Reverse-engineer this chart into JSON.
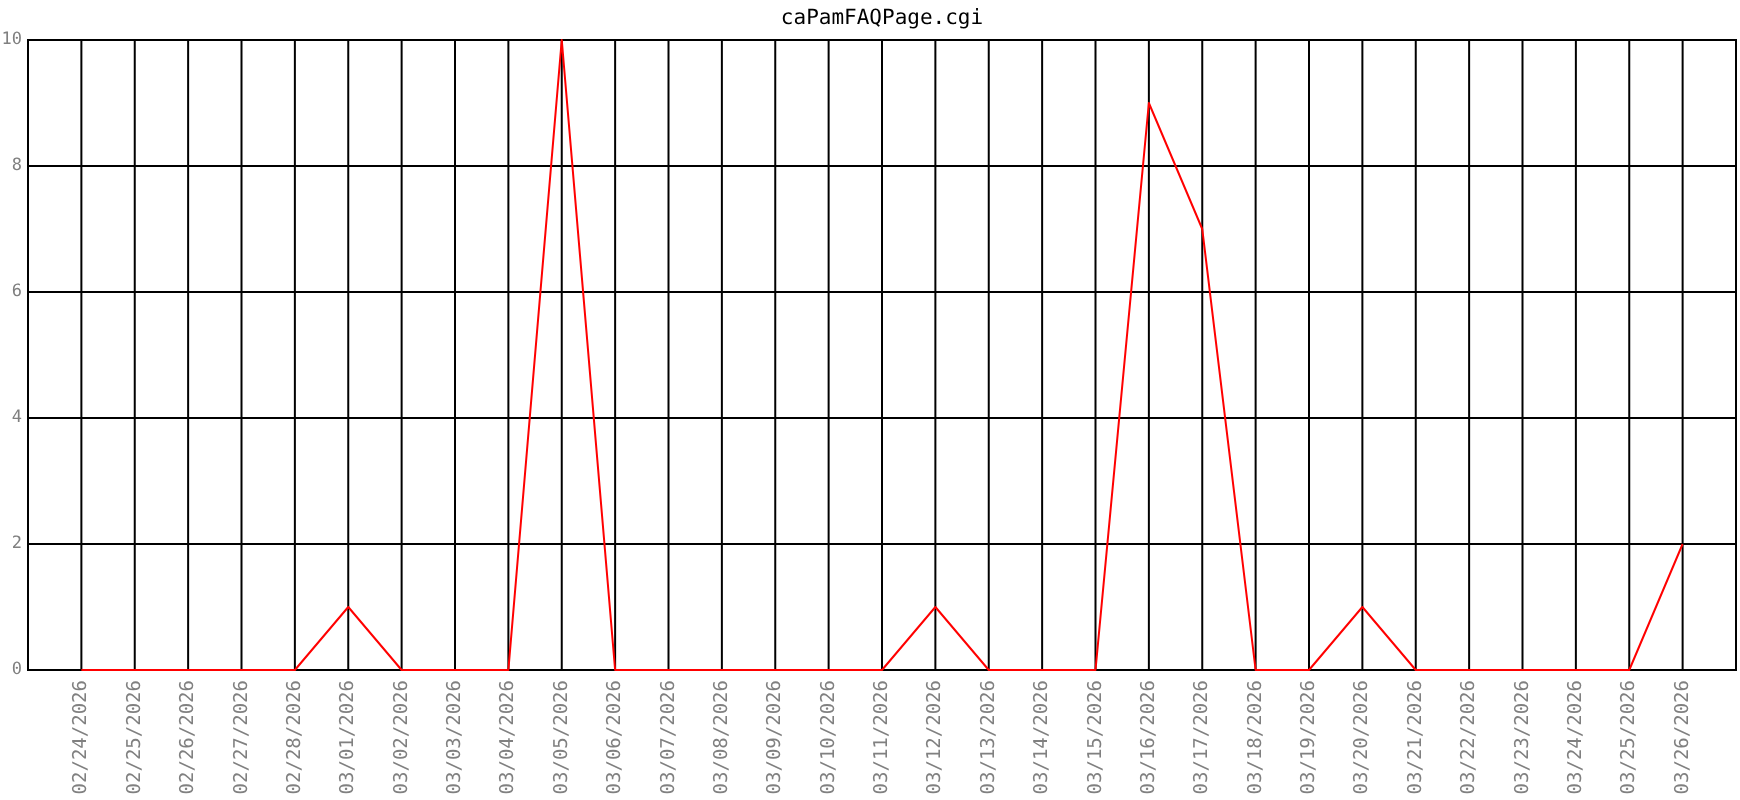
{
  "chart_data": {
    "type": "line",
    "title": "caPamFAQPage.cgi",
    "categories": [
      "02/24/2026",
      "02/25/2026",
      "02/26/2026",
      "02/27/2026",
      "02/28/2026",
      "03/01/2026",
      "03/02/2026",
      "03/03/2026",
      "03/04/2026",
      "03/05/2026",
      "03/06/2026",
      "03/07/2026",
      "03/08/2026",
      "03/09/2026",
      "03/10/2026",
      "03/11/2026",
      "03/12/2026",
      "03/13/2026",
      "03/14/2026",
      "03/15/2026",
      "03/16/2026",
      "03/17/2026",
      "03/18/2026",
      "03/19/2026",
      "03/20/2026",
      "03/21/2026",
      "03/22/2026",
      "03/23/2026",
      "03/24/2026",
      "03/25/2026",
      "03/26/2026"
    ],
    "series": [
      {
        "color": "#ff0000",
        "values": [
          0,
          0,
          0,
          0,
          0,
          1,
          0,
          0,
          0,
          10,
          0,
          0,
          0,
          0,
          0,
          0,
          1,
          0,
          0,
          0,
          9,
          7,
          0,
          0,
          1,
          0,
          0,
          0,
          0,
          0,
          2
        ]
      }
    ],
    "ylim": [
      0,
      10
    ],
    "yticks": [
      0,
      2,
      4,
      6,
      8,
      10
    ],
    "grid": true
  }
}
